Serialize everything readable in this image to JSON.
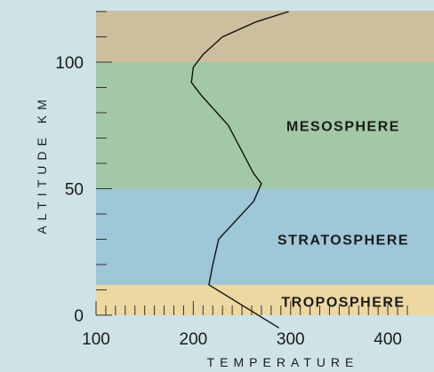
{
  "chart_data": {
    "type": "line",
    "xlabel": "TEMPERATURE",
    "ylabel": "ALTITUDE KM",
    "xlim": [
      100,
      420
    ],
    "ylim": [
      0,
      120
    ],
    "x_ticks": [
      100,
      200,
      300,
      400
    ],
    "y_ticks": [
      0,
      50,
      100
    ],
    "x_tick_labels": [
      "100",
      "200",
      "300",
      "400"
    ],
    "y_tick_labels": [
      "0",
      "50",
      "100"
    ],
    "layers": [
      {
        "name": "",
        "y_from": 100,
        "y_to": 120,
        "color": "#cdbf9d"
      },
      {
        "name": "MESOSPHERE",
        "y_from": 50,
        "y_to": 100,
        "color": "#a3c8a6"
      },
      {
        "name": "STRATOSPHERE",
        "y_from": 12,
        "y_to": 50,
        "color": "#9ec7d8"
      },
      {
        "name": "TROPOSPHERE",
        "y_from": 0,
        "y_to": 12,
        "color": "#ecd8a0"
      }
    ],
    "series": [
      {
        "color": "#111111",
        "points": [
          [
            288,
            -5
          ],
          [
            216,
            12
          ],
          [
            220,
            20
          ],
          [
            226,
            30
          ],
          [
            262,
            45
          ],
          [
            270,
            52
          ],
          [
            262,
            56
          ],
          [
            236,
            75
          ],
          [
            208,
            87
          ],
          [
            198,
            92
          ],
          [
            200,
            98
          ],
          [
            210,
            103
          ],
          [
            230,
            110
          ],
          [
            265,
            116
          ],
          [
            298,
            120
          ]
        ]
      }
    ]
  }
}
